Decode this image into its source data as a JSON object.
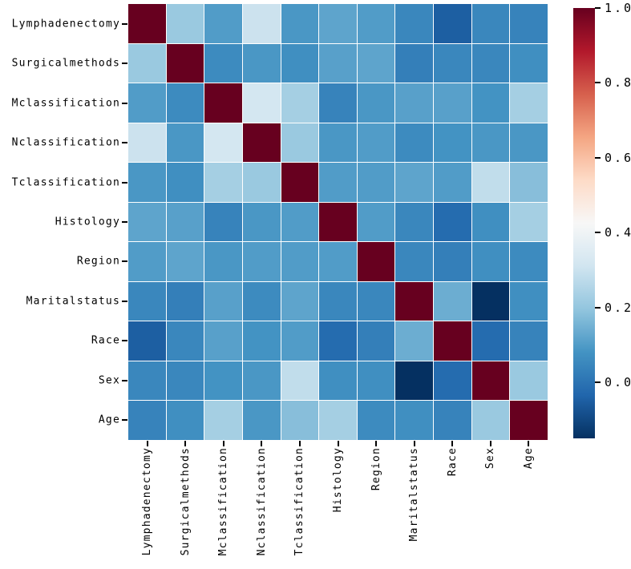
{
  "figure": {
    "background": "#ffffff",
    "title": ""
  },
  "chart_data": {
    "type": "heatmap",
    "title": "",
    "xlabel": "",
    "ylabel": "",
    "grid": false,
    "variables": [
      "Lymphadenectomy",
      "Surgicalmethods",
      "Mclassification",
      "Nclassification",
      "Tclassification",
      "Histology",
      "Region",
      "Maritalstatus",
      "Race",
      "Sex",
      "Age"
    ],
    "matrix": [
      [
        1.0,
        0.21,
        0.1,
        0.3,
        0.09,
        0.12,
        0.1,
        0.05,
        -0.05,
        0.05,
        0.04
      ],
      [
        0.21,
        1.0,
        0.06,
        0.09,
        0.07,
        0.11,
        0.12,
        0.03,
        0.05,
        0.05,
        0.07
      ],
      [
        0.1,
        0.06,
        1.0,
        0.32,
        0.23,
        0.04,
        0.09,
        0.11,
        0.11,
        0.08,
        0.23
      ],
      [
        0.3,
        0.09,
        0.32,
        1.0,
        0.21,
        0.09,
        0.1,
        0.06,
        0.08,
        0.09,
        0.09
      ],
      [
        0.09,
        0.07,
        0.23,
        0.21,
        1.0,
        0.1,
        0.1,
        0.12,
        0.1,
        0.28,
        0.18
      ],
      [
        0.12,
        0.11,
        0.04,
        0.09,
        0.1,
        1.0,
        0.1,
        0.05,
        -0.02,
        0.07,
        0.23
      ],
      [
        0.1,
        0.12,
        0.09,
        0.1,
        0.1,
        0.1,
        1.0,
        0.05,
        0.03,
        0.07,
        0.06
      ],
      [
        0.05,
        0.03,
        0.11,
        0.06,
        0.12,
        0.05,
        0.05,
        1.0,
        0.14,
        -0.15,
        0.07
      ],
      [
        -0.05,
        0.05,
        0.11,
        0.08,
        0.1,
        -0.02,
        0.03,
        0.14,
        1.0,
        -0.02,
        0.04
      ],
      [
        0.05,
        0.05,
        0.08,
        0.09,
        0.28,
        0.07,
        0.07,
        -0.15,
        -0.02,
        1.0,
        0.21
      ],
      [
        0.04,
        0.07,
        0.23,
        0.09,
        0.18,
        0.23,
        0.06,
        0.07,
        0.04,
        0.21,
        1.0
      ]
    ],
    "colormap": {
      "name": "RdBu_r",
      "vmin": -0.15,
      "vmax": 1.0,
      "anchors": [
        "#053061",
        "#2166ac",
        "#4393c3",
        "#92c5de",
        "#d1e5f0",
        "#f7f7f7",
        "#fddbc7",
        "#f4a582",
        "#d6604d",
        "#b2182b",
        "#67001f"
      ]
    },
    "cell_gridline_color": "#ffffff",
    "colorbar": {
      "position": "right",
      "tick_labels": [
        "1.0",
        "0.8",
        "0.6",
        "0.4",
        "0.2",
        "0.0"
      ],
      "tick_values": [
        1.0,
        0.8,
        0.6,
        0.4,
        0.2,
        0.0
      ]
    }
  }
}
